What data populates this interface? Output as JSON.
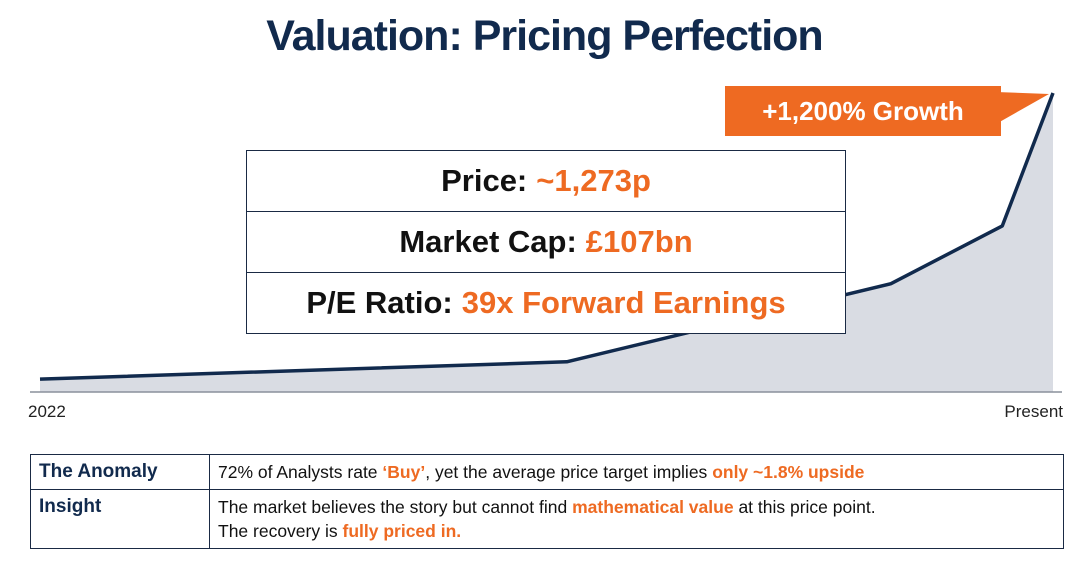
{
  "title": "Valuation: Pricing Perfection",
  "colors": {
    "navy": "#112a4d",
    "accent": "#ee6a22",
    "area_fill": "#d9dce3"
  },
  "chart_data": {
    "type": "area",
    "x": [
      0,
      0.52,
      0.84,
      0.95,
      1.0
    ],
    "y": [
      1,
      7,
      34,
      54,
      100
    ],
    "x_tick_labels": [
      "2022",
      "Present"
    ],
    "annotation": "+1,200% Growth",
    "grid": false
  },
  "stats": {
    "price_label": "Price:",
    "price_value": "~1,273p",
    "market_cap_label": "Market Cap:",
    "market_cap_value": "£107bn",
    "pe_label": "P/E Ratio:",
    "pe_value": "39x Forward Earnings"
  },
  "table": {
    "row1_label": "The Anomaly",
    "row1_text1": "72% of Analysts rate",
    "row1_hl1": "‘Buy’",
    "row1_text2": ", yet the average price target implies",
    "row1_hl2": "only ~1.8% upside",
    "row2_label": "Insight",
    "row2_text1": "The market believes the story but cannot find",
    "row2_hl1": "mathematical value",
    "row2_text2": "at this price point.",
    "row2_text3": "The recovery is",
    "row2_hl2": "fully priced in."
  }
}
